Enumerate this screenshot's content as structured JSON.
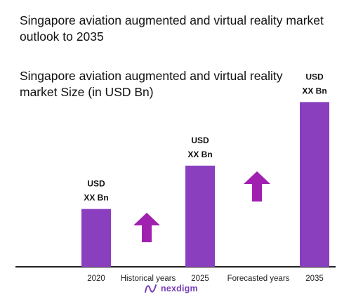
{
  "header": {
    "title": "Singapore aviation augmented and virtual reality market outlook to 2035",
    "subtitle": "Singapore aviation augmented and virtual reality market Size (in USD Bn)"
  },
  "brand": {
    "name": "nexdigm",
    "color": "#7a3fb8",
    "logo_icon": "nexdigm-wave-icon"
  },
  "chart_data": {
    "type": "bar",
    "categories": [
      "2020",
      "2025",
      "2035"
    ],
    "values": [
      1.0,
      1.75,
      2.85
    ],
    "value_note": "relative heights only; actual values shown as placeholders",
    "data_labels": [
      [
        "USD",
        "XX Bn"
      ],
      [
        "USD",
        "XX Bn"
      ],
      [
        "USD",
        "XX Bn"
      ]
    ],
    "period_labels": [
      "Historical years",
      "Forecasted years"
    ],
    "arrows": [
      "growth-arrow-icon",
      "growth-arrow-icon"
    ],
    "colors": {
      "bar": "#8a3fbf",
      "arrow": "#a020b0",
      "axis": "#222222"
    },
    "ylim": [
      0,
      3
    ],
    "grid": false,
    "legend": "none"
  }
}
